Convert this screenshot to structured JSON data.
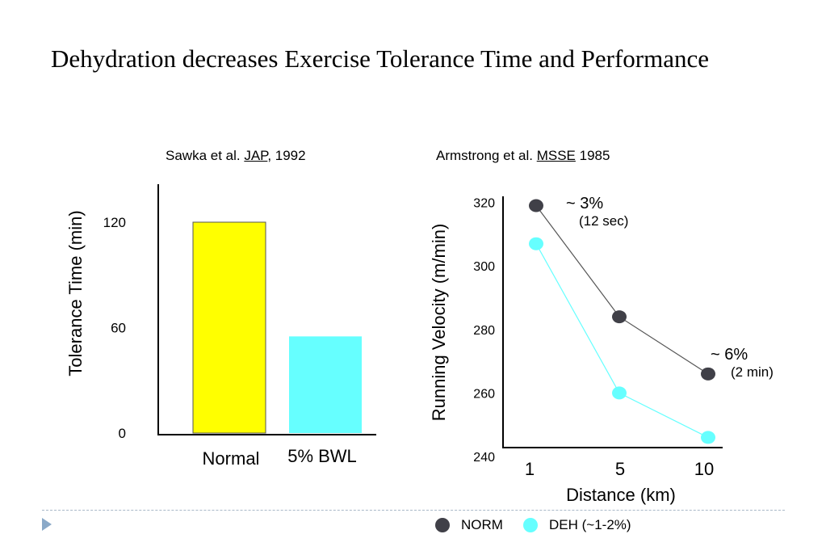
{
  "slide": {
    "title": "Dehydration decreases Exercise Tolerance Time and Performance",
    "accent_color": "#8aa9c8"
  },
  "citations": {
    "left": {
      "authors": "Sawka et al. ",
      "journal": "JAP",
      "year": ", 1992"
    },
    "right": {
      "authors": "Armstrong et al. ",
      "journal": "MSSE",
      "year": " 1985"
    }
  },
  "chart_data": [
    {
      "type": "bar",
      "categories": [
        "Normal",
        "5% BWL"
      ],
      "values": [
        120,
        55
      ],
      "colors": [
        "#ffff00",
        "#66ffff"
      ],
      "ylabel": "Tolerance Time (min)",
      "xlabel": "",
      "yticks": [
        "0",
        "60",
        "120"
      ],
      "ylim": [
        0,
        143
      ],
      "grid": false
    },
    {
      "type": "line",
      "x": [
        "1",
        "5",
        "10"
      ],
      "xlabel": "Distance (km)",
      "ylabel": "Running Velocity (m/min)",
      "yticks": [
        "240",
        "260",
        "280",
        "300",
        "320"
      ],
      "ylim": [
        240,
        320
      ],
      "grid": false,
      "legend_position": "bottom",
      "series": [
        {
          "name": "NORM",
          "values": [
            319,
            284,
            266
          ],
          "color": "#404048"
        },
        {
          "name": "DEH (~1-2%)",
          "values": [
            307,
            260,
            246
          ],
          "color": "#66ffff"
        }
      ],
      "annotations": [
        {
          "text": "~ 3%",
          "subtext": "(12 sec)",
          "near": "1"
        },
        {
          "text": "~ 6%",
          "subtext": "(2 min)",
          "near": "10"
        }
      ]
    }
  ]
}
